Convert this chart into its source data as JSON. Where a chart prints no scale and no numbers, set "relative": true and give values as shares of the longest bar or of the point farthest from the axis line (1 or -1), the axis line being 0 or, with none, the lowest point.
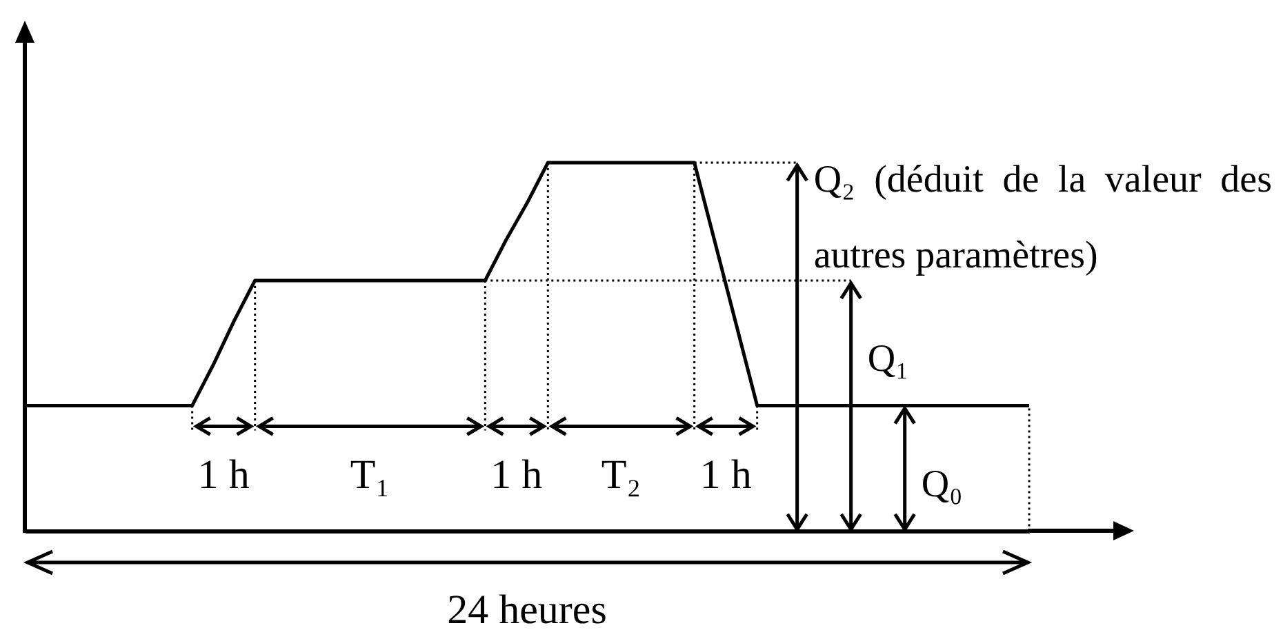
{
  "chart_data": {
    "type": "line",
    "relative": true,
    "categories": [
      null,
      null,
      null,
      null,
      null,
      null,
      null,
      null,
      null,
      null,
      null,
      null,
      null,
      null,
      null,
      null,
      null,
      null,
      null,
      null,
      null,
      null,
      null,
      null,
      null,
      null,
      null,
      null,
      null,
      null,
      null,
      null,
      null,
      null,
      null,
      null,
      null,
      null,
      null,
      null,
      null,
      null,
      null,
      null,
      null,
      null,
      null,
      null,
      null
    ],
    "values": [
      0.34,
      0.34,
      0.34,
      0.34,
      0.34,
      0.34,
      0.34,
      0.34,
      0.34,
      0.45,
      0.57,
      0.68,
      0.68,
      0.68,
      0.68,
      0.68,
      0.68,
      0.68,
      0.68,
      0.68,
      0.68,
      0.68,
      0.68,
      0.79,
      0.89,
      1,
      1,
      1,
      1,
      1,
      1,
      1,
      1,
      0.78,
      0.56,
      0.34,
      0.34,
      0.34,
      0.34,
      0.34,
      0.34,
      0.34,
      0.34,
      0.34,
      0.34,
      0.34,
      0.34,
      0.34,
      0.34
    ],
    "color": "#000000",
    "annotations": [
      "1 h",
      "T₁",
      "1 h",
      "T₂",
      "1 h",
      "Q₂ (déduit de la valeur des autres paramètres)",
      "Q₁",
      "Q₀",
      "24 heures"
    ]
  }
}
